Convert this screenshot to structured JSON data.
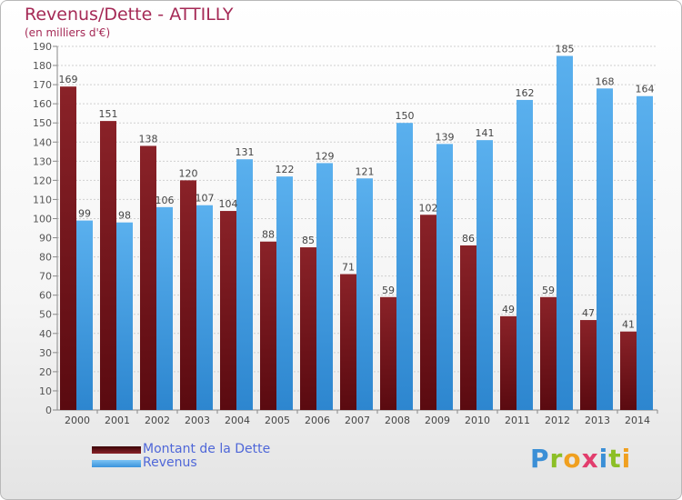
{
  "title": "Revenus/Dette - ATTILLY",
  "subtitle": "(en milliers d'€)",
  "colors": {
    "title": "#a52a56",
    "dette": "#7a1a1e",
    "revenus": "#4aa3e6",
    "legend_text": "#4f67d8"
  },
  "legend": [
    {
      "label": "Montant de la Dette",
      "color": "#7a1a1e"
    },
    {
      "label": "Revenus",
      "color": "#4aa3e6"
    }
  ],
  "logo": {
    "text": "Proxiti"
  },
  "chart_data": {
    "type": "bar",
    "categories": [
      "2000",
      "2001",
      "2002",
      "2003",
      "2004",
      "2005",
      "2006",
      "2007",
      "2008",
      "2009",
      "2010",
      "2011",
      "2012",
      "2013",
      "2014"
    ],
    "series": [
      {
        "name": "Montant de la Dette",
        "values": [
          169,
          151,
          138,
          120,
          104,
          88,
          85,
          71,
          59,
          102,
          86,
          49,
          59,
          47,
          41
        ]
      },
      {
        "name": "Revenus",
        "values": [
          99,
          98,
          106,
          107,
          131,
          122,
          129,
          121,
          150,
          139,
          141,
          162,
          185,
          168,
          164
        ]
      }
    ],
    "title": "Revenus/Dette - ATTILLY",
    "ylabel": "(en milliers d'€)",
    "ylim": [
      0,
      190
    ],
    "ytick_step": 10,
    "grid": true,
    "legend_position": "bottom-left"
  }
}
